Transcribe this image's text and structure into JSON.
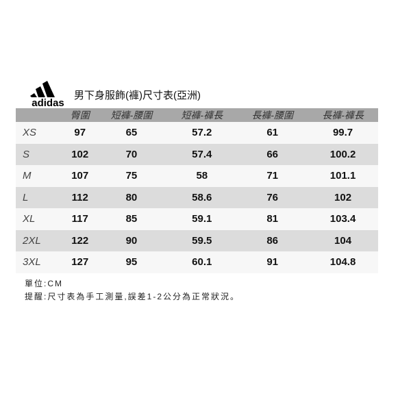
{
  "logo": {
    "text": "adidas",
    "icon": "adidas-three-stripes-logo"
  },
  "title": "男下身服飾(褲)尺寸表(亞洲)",
  "headers": [
    "",
    "臀圍",
    "短褲-腰圍",
    "短褲-褲長",
    "長褲-腰圍",
    "長褲-褲長"
  ],
  "rows": [
    [
      "XS",
      "97",
      "65",
      "57.2",
      "61",
      "99.7"
    ],
    [
      "S",
      "102",
      "70",
      "57.4",
      "66",
      "100.2"
    ],
    [
      "M",
      "107",
      "75",
      "58",
      "71",
      "101.1"
    ],
    [
      "L",
      "112",
      "80",
      "58.6",
      "76",
      "102"
    ],
    [
      "XL",
      "117",
      "85",
      "59.1",
      "81",
      "103.4"
    ],
    [
      "2XL",
      "122",
      "90",
      "59.5",
      "86",
      "104"
    ],
    [
      "3XL",
      "127",
      "95",
      "60.1",
      "91",
      "104.8"
    ]
  ],
  "notes": [
    "單位:CM",
    "提醒:尺寸表為手工測量,誤差1-2公分為正常狀況。"
  ],
  "colors": {
    "header_bg": "#a8a8a8",
    "row_light": "#f7f7f7",
    "row_dark": "#dcdcdc"
  }
}
